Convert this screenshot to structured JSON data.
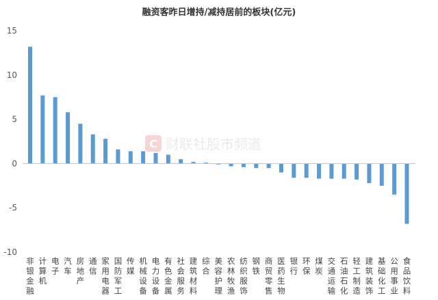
{
  "chart_data": {
    "type": "bar",
    "title": "融资客昨日增持/减持居前的板块(亿元)",
    "xlabel": "",
    "ylabel": "",
    "ylim": [
      -10,
      15
    ],
    "yticks": [
      15,
      10,
      5,
      0,
      -5,
      -10
    ],
    "grid": false,
    "color": "#5b9bd5",
    "categories": [
      "非银金融",
      "计算机",
      "电子",
      "汽车",
      "房地产",
      "通信",
      "家用电器",
      "国防军工",
      "传媒",
      "机械设备",
      "电力设备",
      "有色金属",
      "社会服务",
      "建筑材料",
      "综合",
      "美容护理",
      "农林牧渔",
      "纺织服饰",
      "钢铁",
      "商贸零售",
      "医药生物",
      "银行",
      "环保",
      "煤炭",
      "交通运输",
      "石油石化",
      "轻工制造",
      "建筑装饰",
      "基础化工",
      "公用事业",
      "食品饮料"
    ],
    "values": [
      13.2,
      7.7,
      7.5,
      5.8,
      4.5,
      3.3,
      2.8,
      1.6,
      1.4,
      1.4,
      1.2,
      1.0,
      0.5,
      0.2,
      0.1,
      -0.1,
      -0.3,
      -0.4,
      -0.5,
      -0.5,
      -1.0,
      -1.6,
      -1.6,
      -1.7,
      -1.7,
      -1.7,
      -1.8,
      -2.2,
      -2.5,
      -3.5,
      -6.8
    ]
  },
  "watermark": {
    "icon": "cailian-logo-icon",
    "text": "财联社股市频道"
  }
}
